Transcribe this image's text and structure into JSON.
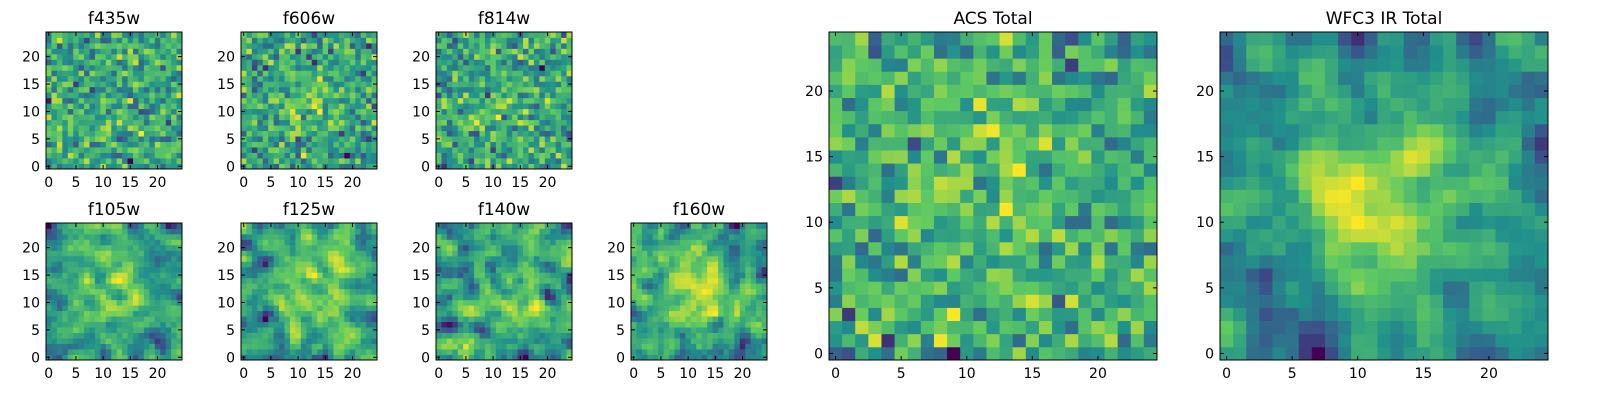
{
  "chart_data": [
    {
      "id": "f435w",
      "type": "heatmap",
      "title": "f435w",
      "group": "small",
      "xticks": [
        0,
        5,
        10,
        15,
        20
      ],
      "yticks": [
        0,
        5,
        10,
        15,
        20
      ],
      "xlim": [
        0,
        25
      ],
      "ylim": [
        0,
        25
      ],
      "grid": 25,
      "peak": 0.0,
      "noise": 1.0,
      "smooth": 0,
      "seed": 11
    },
    {
      "id": "f606w",
      "type": "heatmap",
      "title": "f606w",
      "group": "small",
      "xticks": [
        0,
        5,
        10,
        15,
        20
      ],
      "yticks": [
        0,
        5,
        10,
        15,
        20
      ],
      "xlim": [
        0,
        25
      ],
      "ylim": [
        0,
        25
      ],
      "grid": 25,
      "peak": 0.35,
      "noise": 1.0,
      "smooth": 0,
      "seed": 23
    },
    {
      "id": "f814w",
      "type": "heatmap",
      "title": "f814w",
      "group": "small",
      "xticks": [
        0,
        5,
        10,
        15,
        20
      ],
      "yticks": [
        0,
        5,
        10,
        15,
        20
      ],
      "xlim": [
        0,
        25
      ],
      "ylim": [
        0,
        25
      ],
      "grid": 25,
      "peak": 0.15,
      "noise": 1.0,
      "smooth": 0,
      "seed": 37
    },
    {
      "id": "f105w",
      "type": "heatmap",
      "title": "f105w",
      "group": "small",
      "xticks": [
        0,
        5,
        10,
        15,
        20
      ],
      "yticks": [
        0,
        5,
        10,
        15,
        20
      ],
      "xlim": [
        0,
        25
      ],
      "ylim": [
        0,
        25
      ],
      "grid": 25,
      "peak": 0.5,
      "noise": 1.0,
      "smooth": 1,
      "seed": 41
    },
    {
      "id": "f125w",
      "type": "heatmap",
      "title": "f125w",
      "group": "small",
      "xticks": [
        0,
        5,
        10,
        15,
        20
      ],
      "yticks": [
        0,
        5,
        10,
        15,
        20
      ],
      "xlim": [
        0,
        25
      ],
      "ylim": [
        0,
        25
      ],
      "grid": 25,
      "peak": 0.5,
      "noise": 1.0,
      "smooth": 1,
      "seed": 53
    },
    {
      "id": "f140w",
      "type": "heatmap",
      "title": "f140w",
      "group": "small",
      "xticks": [
        0,
        5,
        10,
        15,
        20
      ],
      "yticks": [
        0,
        5,
        10,
        15,
        20
      ],
      "xlim": [
        0,
        25
      ],
      "ylim": [
        0,
        25
      ],
      "grid": 25,
      "peak": 0.3,
      "noise": 1.0,
      "smooth": 1,
      "seed": 67
    },
    {
      "id": "f160w",
      "type": "heatmap",
      "title": "f160w",
      "group": "small",
      "xticks": [
        0,
        5,
        10,
        15,
        20
      ],
      "yticks": [
        0,
        5,
        10,
        15,
        20
      ],
      "xlim": [
        0,
        25
      ],
      "ylim": [
        0,
        25
      ],
      "grid": 25,
      "peak": 0.6,
      "noise": 1.0,
      "smooth": 1,
      "seed": 79
    },
    {
      "id": "acs_total",
      "type": "heatmap",
      "title": "ACS Total",
      "group": "large",
      "xticks": [
        0,
        5,
        10,
        15,
        20
      ],
      "yticks": [
        0,
        5,
        10,
        15,
        20
      ],
      "xlim": [
        0,
        25
      ],
      "ylim": [
        0,
        25
      ],
      "grid": 25,
      "peak": 0.25,
      "noise": 1.0,
      "smooth": 0,
      "seed": 97
    },
    {
      "id": "wfc3_ir_total",
      "type": "heatmap",
      "title": "WFC3 IR Total",
      "group": "large",
      "xticks": [
        0,
        5,
        10,
        15,
        20
      ],
      "yticks": [
        0,
        5,
        10,
        15,
        20
      ],
      "xlim": [
        0,
        25
      ],
      "ylim": [
        0,
        25
      ],
      "grid": 25,
      "peak": 1.2,
      "noise": 1.0,
      "smooth": 1,
      "seed": 113
    }
  ],
  "colormap": [
    "#440154",
    "#3b528b",
    "#21918c",
    "#5ec962",
    "#fde725"
  ]
}
